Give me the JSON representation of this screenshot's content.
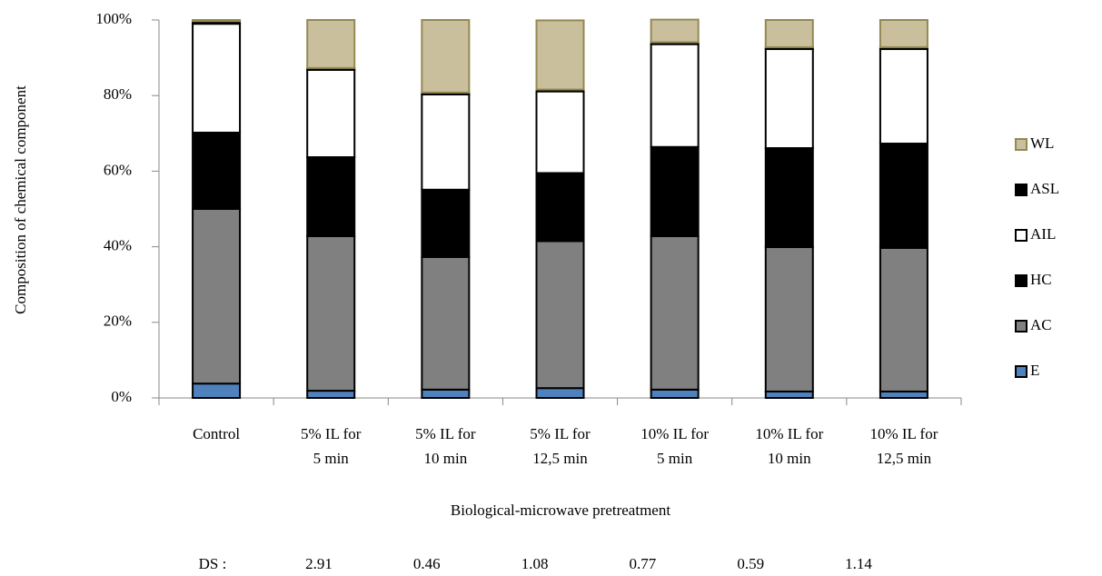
{
  "chart_data": {
    "type": "stacked_bar",
    "ylabel": "Composition of chemical component",
    "xlabel": "Biological-microwave pretreatment",
    "categories": [
      [
        "Control"
      ],
      [
        "5% IL for",
        "5 min"
      ],
      [
        "5% IL for",
        "10 min"
      ],
      [
        "5% IL for",
        "12,5 min"
      ],
      [
        "10% IL for",
        "5 min"
      ],
      [
        "10% IL for",
        "10 min"
      ],
      [
        "10% IL for",
        "12,5 min"
      ]
    ],
    "ylim": [
      0,
      100
    ],
    "yticks": [
      {
        "value": 0,
        "label": "0%"
      },
      {
        "value": 20,
        "label": "20%"
      },
      {
        "value": 40,
        "label": "40%"
      },
      {
        "value": 60,
        "label": "60%"
      },
      {
        "value": 80,
        "label": "80%"
      },
      {
        "value": 100,
        "label": "100%"
      }
    ],
    "series": [
      {
        "name": "E",
        "color": "#4f81bd",
        "values": [
          3.8,
          1.9,
          2.2,
          2.6,
          2.2,
          1.7,
          1.7
        ]
      },
      {
        "name": "AC",
        "color": "#808080",
        "values": [
          46.2,
          40.9,
          35.1,
          38.9,
          40.6,
          38.2,
          38.0
        ]
      },
      {
        "name": "HC",
        "color": "#000000",
        "values": [
          20.2,
          20.9,
          17.8,
          18.0,
          23.6,
          26.2,
          27.6
        ]
      },
      {
        "name": "AIL",
        "color": "#ffffff",
        "values": [
          28.8,
          23.1,
          25.2,
          21.6,
          27.2,
          26.2,
          25.0
        ]
      },
      {
        "name": "ASL",
        "color": "#000000",
        "values": [
          0.7,
          0.5,
          0.5,
          0.5,
          0.5,
          0.5,
          0.5
        ]
      },
      {
        "name": "WL",
        "color": "#c9bf9d",
        "values": [
          0.3,
          12.7,
          19.2,
          18.3,
          6.0,
          7.2,
          7.2
        ]
      }
    ],
    "ds_label": "DS :",
    "ds_values": [
      2.91,
      0.46,
      1.08,
      0.77,
      0.59,
      1.14
    ]
  }
}
